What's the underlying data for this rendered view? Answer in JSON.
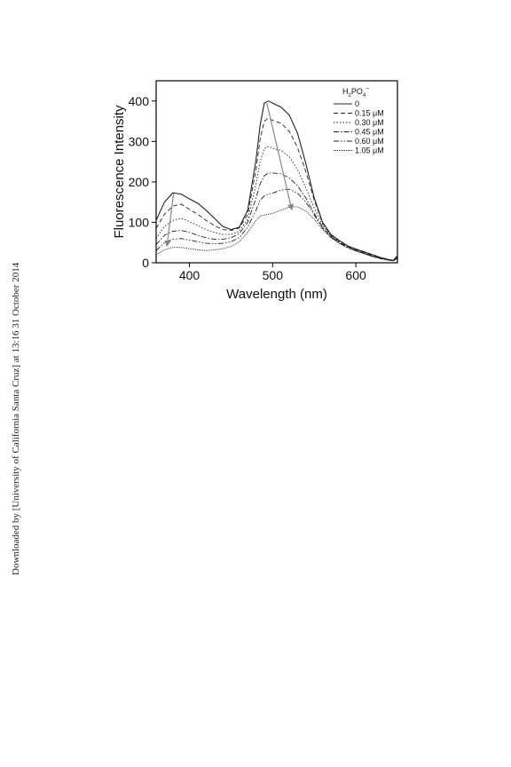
{
  "watermark": "Downloaded by [University of California Santa Cruz] at 13:16 31 October 2014",
  "chart_data": {
    "type": "line",
    "xlabel": "Wavelength (nm)",
    "ylabel": "Fluorescence Intensity",
    "xlim": [
      360,
      650
    ],
    "ylim": [
      0,
      450
    ],
    "xticks": [
      400,
      500,
      600
    ],
    "yticks": [
      0,
      100,
      200,
      300,
      400
    ],
    "grid": false,
    "legend_position": "top-right",
    "legend_title": {
      "base": "H",
      "sub1": "2",
      "mid": "PO",
      "sub2": "4",
      "sup": "−"
    },
    "series": [
      {
        "name": "0",
        "dash": "",
        "points": [
          [
            360,
            105
          ],
          [
            370,
            150
          ],
          [
            380,
            173
          ],
          [
            390,
            170
          ],
          [
            400,
            158
          ],
          [
            410,
            147
          ],
          [
            420,
            130
          ],
          [
            430,
            110
          ],
          [
            440,
            90
          ],
          [
            450,
            82
          ],
          [
            460,
            88
          ],
          [
            470,
            130
          ],
          [
            480,
            255
          ],
          [
            485,
            340
          ],
          [
            490,
            395
          ],
          [
            495,
            400
          ],
          [
            500,
            395
          ],
          [
            510,
            385
          ],
          [
            520,
            365
          ],
          [
            530,
            320
          ],
          [
            540,
            245
          ],
          [
            550,
            160
          ],
          [
            560,
            100
          ],
          [
            570,
            70
          ],
          [
            580,
            55
          ],
          [
            590,
            42
          ],
          [
            600,
            34
          ],
          [
            610,
            27
          ],
          [
            620,
            20
          ],
          [
            630,
            13
          ],
          [
            640,
            8
          ],
          [
            645,
            6
          ],
          [
            650,
            18
          ]
        ]
      },
      {
        "name": "0.15 μM",
        "dash": "5,3",
        "points": [
          [
            360,
            85
          ],
          [
            370,
            120
          ],
          [
            380,
            140
          ],
          [
            390,
            145
          ],
          [
            400,
            132
          ],
          [
            410,
            120
          ],
          [
            420,
            105
          ],
          [
            430,
            92
          ],
          [
            440,
            82
          ],
          [
            450,
            80
          ],
          [
            460,
            86
          ],
          [
            470,
            120
          ],
          [
            480,
            230
          ],
          [
            485,
            305
          ],
          [
            490,
            350
          ],
          [
            495,
            358
          ],
          [
            500,
            352
          ],
          [
            510,
            345
          ],
          [
            520,
            325
          ],
          [
            530,
            285
          ],
          [
            540,
            225
          ],
          [
            550,
            155
          ],
          [
            560,
            98
          ],
          [
            570,
            68
          ],
          [
            580,
            52
          ],
          [
            590,
            40
          ],
          [
            600,
            32
          ],
          [
            610,
            25
          ],
          [
            620,
            18
          ],
          [
            630,
            12
          ],
          [
            640,
            7
          ],
          [
            645,
            5
          ],
          [
            650,
            14
          ]
        ]
      },
      {
        "name": "0.30 μM",
        "dash": "1.5,2",
        "points": [
          [
            360,
            60
          ],
          [
            370,
            90
          ],
          [
            380,
            105
          ],
          [
            390,
            110
          ],
          [
            400,
            102
          ],
          [
            410,
            92
          ],
          [
            420,
            82
          ],
          [
            430,
            75
          ],
          [
            440,
            70
          ],
          [
            450,
            70
          ],
          [
            460,
            78
          ],
          [
            470,
            108
          ],
          [
            480,
            195
          ],
          [
            485,
            250
          ],
          [
            490,
            282
          ],
          [
            495,
            288
          ],
          [
            500,
            283
          ],
          [
            510,
            278
          ],
          [
            520,
            262
          ],
          [
            530,
            230
          ],
          [
            540,
            185
          ],
          [
            550,
            135
          ],
          [
            560,
            93
          ],
          [
            570,
            66
          ],
          [
            580,
            51
          ],
          [
            590,
            39
          ],
          [
            600,
            31
          ],
          [
            610,
            24
          ],
          [
            620,
            17
          ],
          [
            630,
            11
          ],
          [
            640,
            7
          ],
          [
            645,
            5
          ],
          [
            650,
            12
          ]
        ]
      },
      {
        "name": "0.45 μM",
        "dash": "6,2,1.5,2",
        "points": [
          [
            360,
            45
          ],
          [
            370,
            68
          ],
          [
            380,
            78
          ],
          [
            390,
            80
          ],
          [
            400,
            75
          ],
          [
            410,
            68
          ],
          [
            420,
            62
          ],
          [
            430,
            58
          ],
          [
            440,
            58
          ],
          [
            450,
            62
          ],
          [
            460,
            72
          ],
          [
            470,
            100
          ],
          [
            480,
            160
          ],
          [
            485,
            195
          ],
          [
            490,
            215
          ],
          [
            495,
            222
          ],
          [
            500,
            222
          ],
          [
            510,
            220
          ],
          [
            520,
            210
          ],
          [
            530,
            190
          ],
          [
            540,
            160
          ],
          [
            550,
            122
          ],
          [
            560,
            88
          ],
          [
            570,
            64
          ],
          [
            580,
            50
          ],
          [
            590,
            38
          ],
          [
            600,
            30
          ],
          [
            610,
            23
          ],
          [
            620,
            16
          ],
          [
            630,
            11
          ],
          [
            640,
            7
          ],
          [
            645,
            5
          ],
          [
            650,
            12
          ]
        ]
      },
      {
        "name": "0.60 μM",
        "dash": "6,2,1.5,2,1.5,2",
        "points": [
          [
            360,
            30
          ],
          [
            370,
            50
          ],
          [
            380,
            58
          ],
          [
            390,
            60
          ],
          [
            400,
            56
          ],
          [
            410,
            52
          ],
          [
            420,
            48
          ],
          [
            430,
            47
          ],
          [
            440,
            48
          ],
          [
            450,
            52
          ],
          [
            460,
            62
          ],
          [
            470,
            88
          ],
          [
            480,
            130
          ],
          [
            485,
            155
          ],
          [
            490,
            165
          ],
          [
            495,
            170
          ],
          [
            500,
            172
          ],
          [
            510,
            180
          ],
          [
            520,
            182
          ],
          [
            530,
            172
          ],
          [
            540,
            150
          ],
          [
            550,
            118
          ],
          [
            560,
            86
          ],
          [
            570,
            63
          ],
          [
            580,
            49
          ],
          [
            590,
            38
          ],
          [
            600,
            30
          ],
          [
            610,
            23
          ],
          [
            620,
            16
          ],
          [
            630,
            10
          ],
          [
            640,
            6
          ],
          [
            645,
            5
          ],
          [
            650,
            11
          ]
        ]
      },
      {
        "name": "1.05 μM",
        "dash": "1,1",
        "points": [
          [
            360,
            20
          ],
          [
            370,
            32
          ],
          [
            380,
            38
          ],
          [
            390,
            38
          ],
          [
            400,
            35
          ],
          [
            410,
            32
          ],
          [
            420,
            30
          ],
          [
            430,
            32
          ],
          [
            440,
            35
          ],
          [
            450,
            40
          ],
          [
            460,
            52
          ],
          [
            470,
            75
          ],
          [
            480,
            105
          ],
          [
            485,
            115
          ],
          [
            490,
            118
          ],
          [
            495,
            120
          ],
          [
            500,
            122
          ],
          [
            510,
            130
          ],
          [
            520,
            138
          ],
          [
            530,
            138
          ],
          [
            540,
            128
          ],
          [
            550,
            108
          ],
          [
            560,
            82
          ],
          [
            570,
            62
          ],
          [
            580,
            48
          ],
          [
            590,
            37
          ],
          [
            600,
            29
          ],
          [
            610,
            22
          ],
          [
            620,
            15
          ],
          [
            630,
            10
          ],
          [
            640,
            6
          ],
          [
            645,
            5
          ],
          [
            650,
            10
          ]
        ]
      }
    ],
    "annotations": [
      {
        "type": "arrow",
        "from": [
          381,
          172
        ],
        "to": [
          373,
          42
        ]
      },
      {
        "type": "arrow",
        "from": [
          493,
          395
        ],
        "to": [
          523,
          132
        ]
      }
    ]
  }
}
